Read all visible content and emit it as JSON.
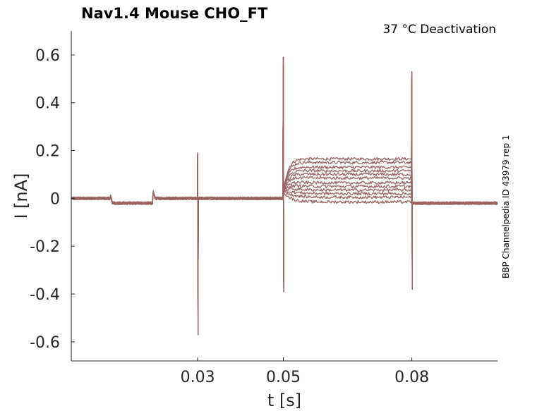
{
  "chart_data": {
    "type": "line",
    "title": "Nav1.4  Mouse  CHO_FT",
    "annotation": "37 °C  Deactivation",
    "side_label": "BBP Channelpedia ID 43979 rep 1",
    "xlabel": "t [s]",
    "ylabel": "I [nA]",
    "xlim": [
      0.0005,
      0.1
    ],
    "ylim": [
      -0.68,
      0.7
    ],
    "xticks": [
      0.03,
      0.05,
      0.08
    ],
    "xtick_labels": [
      "0.03",
      "0.05",
      "0.08"
    ],
    "yticks": [
      0.6,
      0.4,
      0.2,
      0,
      -0.2,
      -0.4,
      -0.6
    ],
    "ytick_labels": [
      "0.6",
      "0.4",
      "0.2",
      "0",
      "-0.2",
      "-0.4",
      "-0.6"
    ],
    "grid": false,
    "color": "#9b6464",
    "protocol": {
      "baseline": 0.0,
      "pre_steps": [
        {
          "t": 0.0095,
          "level": -0.02
        },
        {
          "t": 0.0195,
          "level": 0.0
        }
      ],
      "events": [
        {
          "t": 0.03,
          "peak_up": 0.19,
          "peak_down": -0.57
        },
        {
          "t": 0.05,
          "peak_up": 0.59,
          "peak_down": -0.39
        },
        {
          "t": 0.08,
          "peak_up": 0.53,
          "peak_down": -0.38
        }
      ],
      "post_level": -0.02
    },
    "series": [
      {
        "plateau": 0.165
      },
      {
        "plateau": 0.15
      },
      {
        "plateau": 0.13
      },
      {
        "plateau": 0.115
      },
      {
        "plateau": 0.1
      },
      {
        "plateau": 0.085
      },
      {
        "plateau": 0.065
      },
      {
        "plateau": 0.05
      },
      {
        "plateau": 0.035
      },
      {
        "plateau": 0.02
      },
      {
        "plateau": 0.005
      },
      {
        "plateau": -0.015
      }
    ]
  }
}
